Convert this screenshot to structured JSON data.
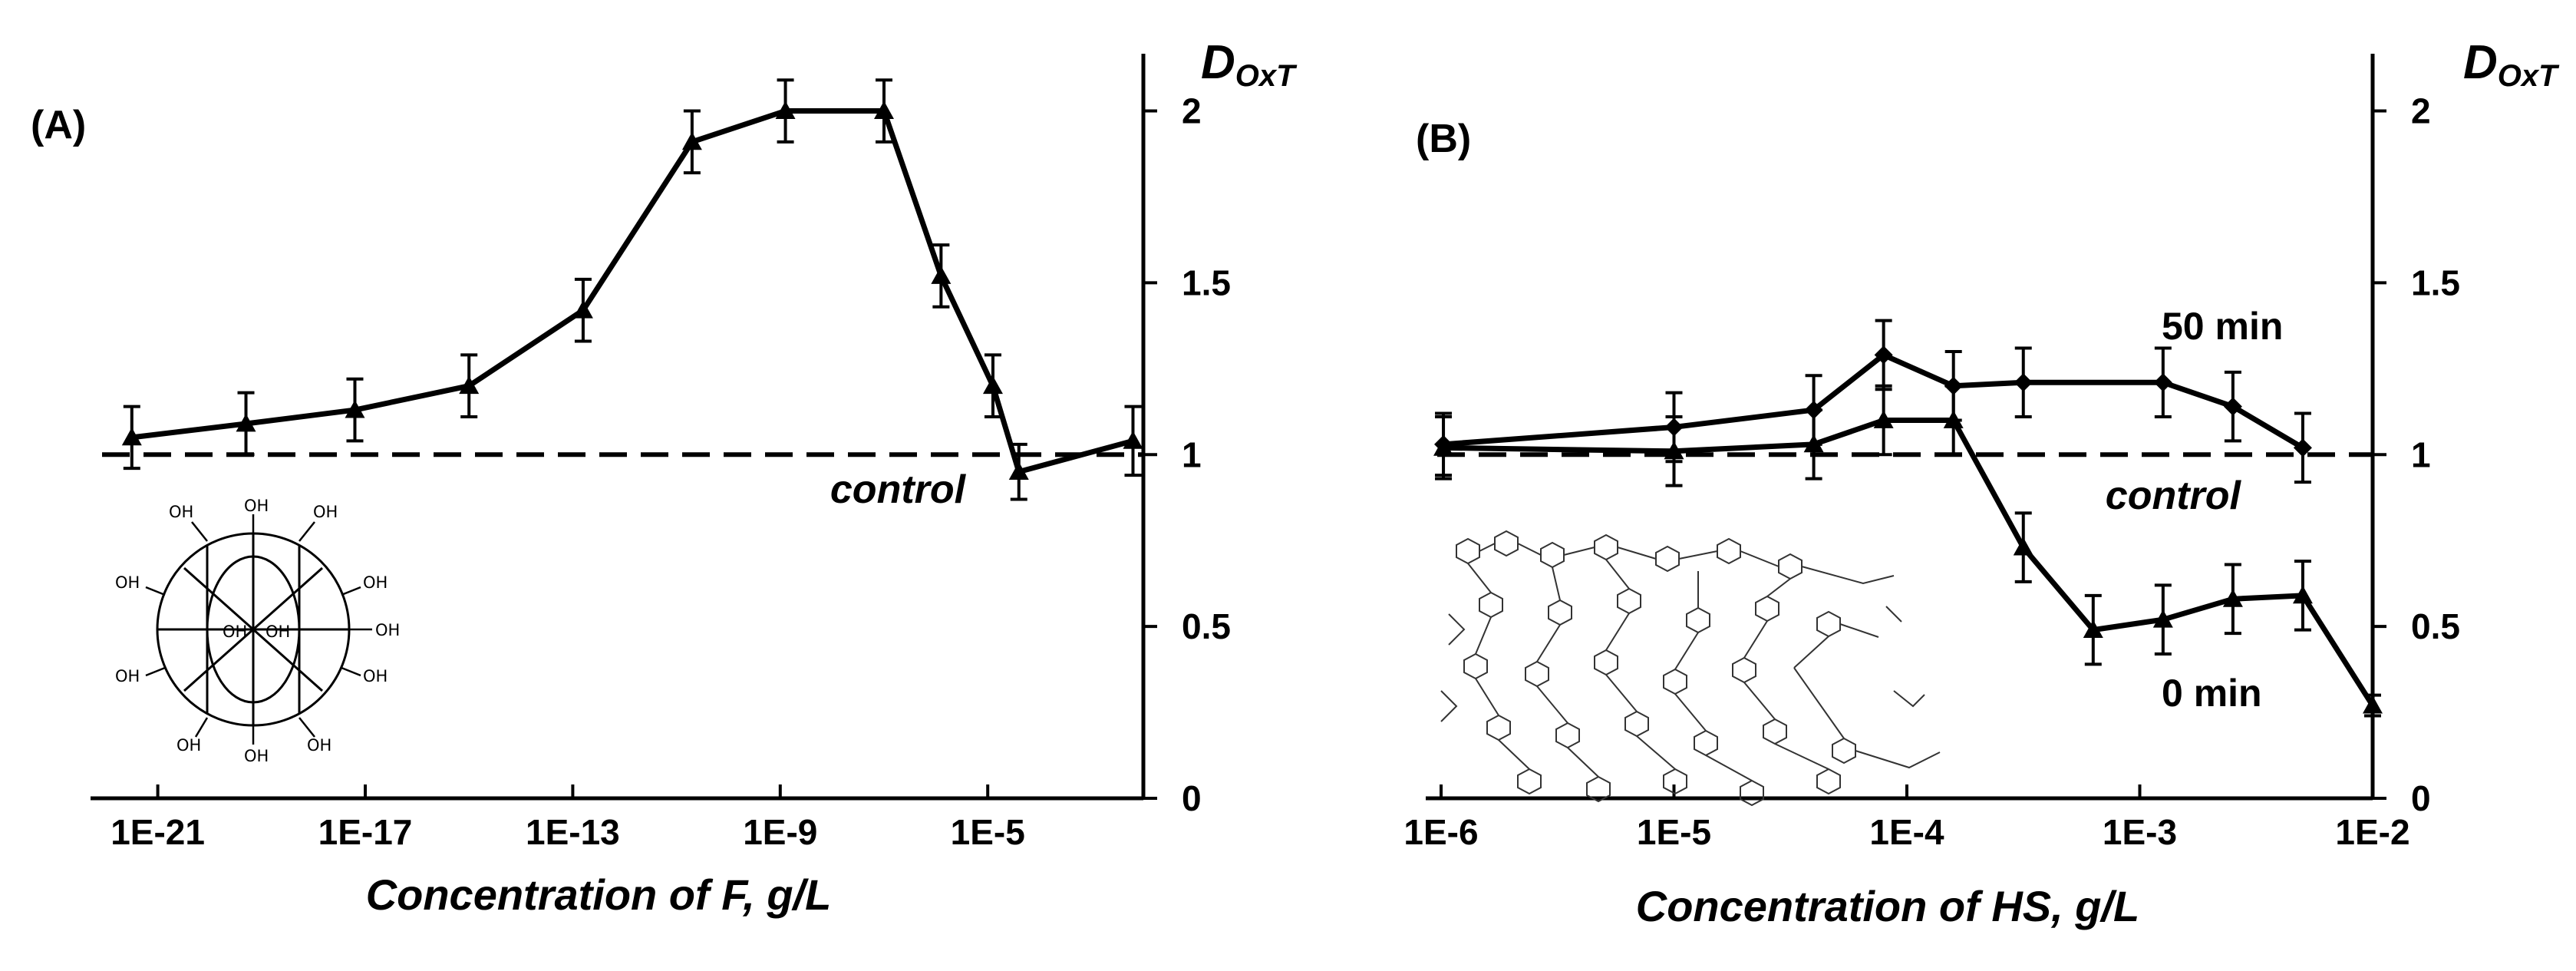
{
  "chart_data": [
    {
      "type": "line",
      "panel_label": "(A)",
      "xlabel": "Concentration of F,  g/L",
      "ylabel": "DOxT",
      "ylabel_main": "D",
      "ylabel_sub": "OxT",
      "x_scale": "log",
      "xlim_log10": [
        -22,
        -2
      ],
      "ylim": [
        0,
        2.2
      ],
      "xticks": [
        {
          "log10": -21,
          "label": "1E-21"
        },
        {
          "log10": -17,
          "label": "1E-17"
        },
        {
          "log10": -13,
          "label": "1E-13"
        },
        {
          "log10": -9,
          "label": "1E-9"
        },
        {
          "log10": -5,
          "label": "1E-5"
        }
      ],
      "yticks": [
        {
          "value": 0,
          "label": "0"
        },
        {
          "value": 0.5,
          "label": "0.5"
        },
        {
          "value": 1,
          "label": "1"
        },
        {
          "value": 1.5,
          "label": "1.5"
        },
        {
          "value": 2,
          "label": "2"
        }
      ],
      "control": {
        "value": 1,
        "label": "control"
      },
      "series": [
        {
          "name": "F",
          "marker": "triangle",
          "x_log10": [
            -21.5,
            -19.3,
            -17.2,
            -15.0,
            -12.8,
            -10.7,
            -8.9,
            -7.0,
            -5.9,
            -4.9,
            -4.4,
            -2.2
          ],
          "y": [
            1.05,
            1.09,
            1.13,
            1.2,
            1.42,
            1.91,
            2.0,
            2.0,
            1.52,
            1.2,
            0.95,
            1.04
          ],
          "err": [
            0.09,
            0.09,
            0.09,
            0.09,
            0.09,
            0.09,
            0.09,
            0.09,
            0.09,
            0.09,
            0.08,
            0.1
          ]
        }
      ],
      "inset": "fullerenol-structure",
      "inset_hydroxyl_label": "OH"
    },
    {
      "type": "line",
      "panel_label": "(B)",
      "xlabel": "Concentration of HS, g/L",
      "ylabel": "DOxT",
      "ylabel_main": "D",
      "ylabel_sub": "OxT",
      "x_scale": "log",
      "xlim_log10": [
        -6,
        -2
      ],
      "ylim": [
        0,
        2.2
      ],
      "xticks": [
        {
          "log10": -6,
          "label": "1E-6"
        },
        {
          "log10": -5,
          "label": "1E-5"
        },
        {
          "log10": -4,
          "label": "1E-4"
        },
        {
          "log10": -3,
          "label": "1E-3"
        },
        {
          "log10": -2,
          "label": "1E-2"
        }
      ],
      "yticks": [
        {
          "value": 0,
          "label": "0"
        },
        {
          "value": 0.5,
          "label": "0.5"
        },
        {
          "value": 1,
          "label": "1"
        },
        {
          "value": 1.5,
          "label": "1.5"
        },
        {
          "value": 2,
          "label": "2"
        }
      ],
      "control": {
        "value": 1,
        "label": "control"
      },
      "series": [
        {
          "name": "50 min",
          "marker": "diamond",
          "x_log10": [
            -5.99,
            -5.0,
            -4.4,
            -4.1,
            -3.8,
            -3.5,
            -2.9,
            -2.6,
            -2.3
          ],
          "y": [
            1.03,
            1.08,
            1.13,
            1.29,
            1.2,
            1.21,
            1.21,
            1.14,
            1.02
          ],
          "err": [
            0.09,
            0.1,
            0.1,
            0.1,
            0.1,
            0.1,
            0.1,
            0.1,
            0.1
          ],
          "label": "50 min"
        },
        {
          "name": "0 min",
          "marker": "triangle",
          "x_log10": [
            -5.99,
            -5.0,
            -4.4,
            -4.1,
            -3.8,
            -3.5,
            -3.2,
            -2.9,
            -2.6,
            -2.3,
            -2.0
          ],
          "y": [
            1.02,
            1.01,
            1.03,
            1.1,
            1.1,
            0.73,
            0.49,
            0.52,
            0.58,
            0.59,
            0.27
          ],
          "err": [
            0.09,
            0.1,
            0.1,
            0.1,
            0.1,
            0.1,
            0.1,
            0.1,
            0.1,
            0.1,
            0.03
          ],
          "label": "0 min"
        }
      ],
      "inset": "humic-substance-structure"
    }
  ]
}
